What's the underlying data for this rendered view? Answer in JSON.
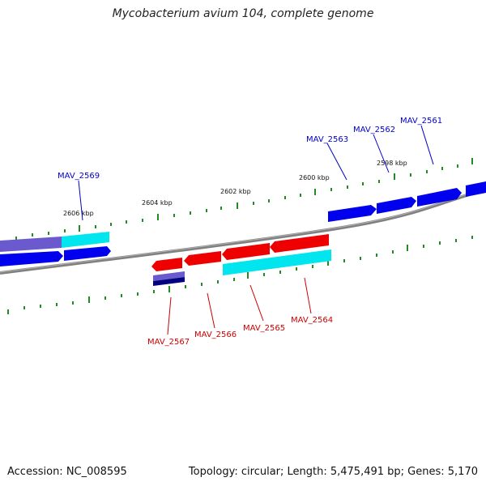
{
  "title": "Mycobacterium avium 104, complete genome",
  "footer": {
    "accession": "Accession: NC_008595",
    "summary": "Topology: circular; Length: 5,475,491 bp; Genes: 5,170"
  },
  "scale_labels": [
    "2606 kbp",
    "2604 kbp",
    "2602 kbp",
    "2600 kbp",
    "2598 kbp"
  ],
  "genes_top": [
    "MAV_2569",
    "MAV_2563",
    "MAV_2562",
    "MAV_2561"
  ],
  "genes_bottom": [
    "MAV_2567",
    "MAV_2566",
    "MAV_2565",
    "MAV_2564"
  ],
  "colors": {
    "forward_gene": "#0000ee",
    "reverse_gene": "#ee0000",
    "cds": "#00e5ee",
    "other_feature": "#6a5acd",
    "backbone": "#808080",
    "ticks": "#228b22"
  }
}
